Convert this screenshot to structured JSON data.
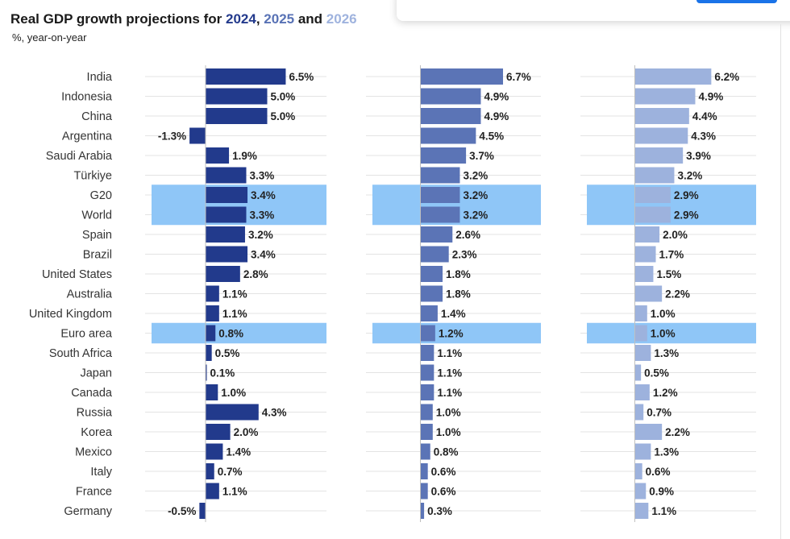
{
  "header": {
    "title_prefix": "Real GDP growth projections for ",
    "year_1": "2024",
    "sep_1": ", ",
    "year_2": "2025",
    "sep_2": " and ",
    "year_3": "2026",
    "subtitle": "%, year-on-year"
  },
  "footer": {
    "text": ""
  },
  "colors": {
    "series_2024": "#223a8c",
    "series_2025": "#5b74b6",
    "series_2026": "#9db2dd",
    "highlight": "#8fc6f7"
  },
  "chart_data": {
    "type": "bar",
    "orientation": "horizontal",
    "categories": [
      "India",
      "Indonesia",
      "China",
      "Argentina",
      "Saudi Arabia",
      "Türkiye",
      "G20",
      "World",
      "Spain",
      "Brazil",
      "United States",
      "Australia",
      "United Kingdom",
      "Euro area",
      "South Africa",
      "Japan",
      "Canada",
      "Russia",
      "Korea",
      "Mexico",
      "Italy",
      "France",
      "Germany"
    ],
    "highlighted_categories": [
      "G20",
      "World",
      "Euro area"
    ],
    "series": [
      {
        "name": "2024",
        "values": [
          6.5,
          5.0,
          5.0,
          -1.3,
          1.9,
          3.3,
          3.4,
          3.3,
          3.2,
          3.4,
          2.8,
          1.1,
          1.1,
          0.8,
          0.5,
          0.1,
          1.0,
          4.3,
          2.0,
          1.4,
          0.7,
          1.1,
          -0.5
        ],
        "labels": [
          "6.5%",
          "5.0%",
          "5.0%",
          "-1.3%",
          "1.9%",
          "3.3%",
          "3.4%",
          "3.3%",
          "3.2%",
          "3.4%",
          "2.8%",
          "1.1%",
          "1.1%",
          "0.8%",
          "0.5%",
          "0.1%",
          "1.0%",
          "4.3%",
          "2.0%",
          "1.4%",
          "0.7%",
          "1.1%",
          "-0.5%"
        ]
      },
      {
        "name": "2025",
        "values": [
          6.7,
          4.9,
          4.9,
          4.5,
          3.7,
          3.2,
          3.2,
          3.2,
          2.6,
          2.3,
          1.8,
          1.8,
          1.4,
          1.2,
          1.1,
          1.1,
          1.1,
          1.0,
          1.0,
          0.8,
          0.6,
          0.6,
          0.3
        ],
        "labels": [
          "6.7%",
          "4.9%",
          "4.9%",
          "4.5%",
          "3.7%",
          "3.2%",
          "3.2%",
          "3.2%",
          "2.6%",
          "2.3%",
          "1.8%",
          "1.8%",
          "1.4%",
          "1.2%",
          "1.1%",
          "1.1%",
          "1.1%",
          "1.0%",
          "1.0%",
          "0.8%",
          "0.6%",
          "0.6%",
          "0.3%"
        ]
      },
      {
        "name": "2026",
        "values": [
          6.2,
          4.9,
          4.4,
          4.3,
          3.9,
          3.2,
          2.9,
          2.9,
          2.0,
          1.7,
          1.5,
          2.2,
          1.0,
          1.0,
          1.3,
          0.5,
          1.2,
          0.7,
          2.2,
          1.3,
          0.6,
          0.9,
          1.1
        ],
        "labels": [
          "6.2%",
          "4.9%",
          "4.4%",
          "4.3%",
          "3.9%",
          "3.2%",
          "2.9%",
          "2.9%",
          "2.0%",
          "1.7%",
          "1.5%",
          "2.2%",
          "1.0%",
          "1.0%",
          "1.3%",
          "0.5%",
          "1.2%",
          "0.7%",
          "2.2%",
          "1.3%",
          "0.6%",
          "0.9%",
          "1.1%"
        ]
      }
    ]
  }
}
